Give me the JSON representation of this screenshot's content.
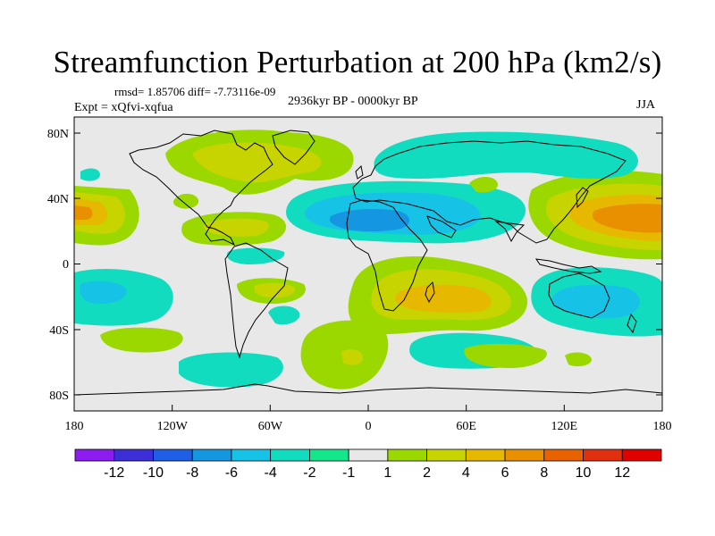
{
  "figure": {
    "title": "Streamfunction Perturbation at 200 hPa (km2/s)",
    "rmsd_line": "rmsd= 1.85706 diff= -7.73116e-09",
    "expt_line": "Expt = xQfvi-xqfua",
    "period_line": "2936kyr BP - 0000kyr BP",
    "season": "JJA"
  },
  "colors": {
    "ocean_background": "#e8e8e8",
    "coastline": "#000000"
  },
  "axes": {
    "x_ticks": [
      "180",
      "120W",
      "60W",
      "0",
      "60E",
      "120E",
      "180"
    ],
    "y_ticks": [
      "80N",
      "40N",
      "0",
      "40S",
      "80S"
    ]
  },
  "colorbar": {
    "labels": [
      "-12",
      "-10",
      "-8",
      "-6",
      "-4",
      "-2",
      "-1",
      "1",
      "2",
      "4",
      "6",
      "8",
      "10",
      "12"
    ],
    "colors": [
      "#8c1cf0",
      "#3c2fd8",
      "#1e5fe6",
      "#1496e0",
      "#16c2e6",
      "#12dcc0",
      "#14e68c",
      "#e8e8e8",
      "#9ad800",
      "#c8d400",
      "#e6b800",
      "#e89000",
      "#e86200",
      "#e03010",
      "#e00000"
    ]
  },
  "chart_data": {
    "type": "filled-contour-map",
    "title": "Streamfunction Perturbation at 200 hPa (km2/s)",
    "subtitle": "2936kyr BP - 0000kyr BP",
    "season": "JJA",
    "units": "km2/s",
    "level": "200 hPa",
    "rmsd": 1.85706,
    "diff": -7.73116e-09,
    "xlim": [
      -180,
      180
    ],
    "ylim": [
      -90,
      90
    ],
    "contour_levels": [
      -12,
      -10,
      -8,
      -6,
      -4,
      -2,
      -1,
      1,
      2,
      4,
      6,
      8,
      10,
      12
    ],
    "features": [
      {
        "name": "north-america-high",
        "center": [
          -90,
          63
        ],
        "value": 2,
        "color": "#9ad800"
      },
      {
        "name": "north-america-core",
        "center": [
          -82,
          65
        ],
        "value": 4,
        "color": "#c8d400"
      },
      {
        "name": "north-pacific-east",
        "center": [
          -175,
          30
        ],
        "value": 6,
        "color": "#e6b800"
      },
      {
        "name": "west-pacific-high",
        "center": [
          160,
          30
        ],
        "value": 8,
        "color": "#e89000"
      },
      {
        "name": "atlantic-low",
        "center": [
          -5,
          28
        ],
        "value": -6,
        "color": "#1496e0"
      },
      {
        "name": "siberia-low",
        "center": [
          90,
          67
        ],
        "value": -2,
        "color": "#12dcc0"
      },
      {
        "name": "southern-africa-high",
        "center": [
          35,
          -25
        ],
        "value": 6,
        "color": "#e6b800"
      },
      {
        "name": "australia-low",
        "center": [
          110,
          -25
        ],
        "value": -2,
        "color": "#12dcc0"
      },
      {
        "name": "south-pacific-low",
        "center": [
          -150,
          -25
        ],
        "value": -2,
        "color": "#12dcc0"
      },
      {
        "name": "southern-ocean-low",
        "center": [
          -70,
          -65
        ],
        "value": -2,
        "color": "#12dcc0"
      },
      {
        "name": "south-atlantic-high",
        "center": [
          -10,
          -55
        ],
        "value": 2,
        "color": "#9ad800"
      }
    ]
  }
}
